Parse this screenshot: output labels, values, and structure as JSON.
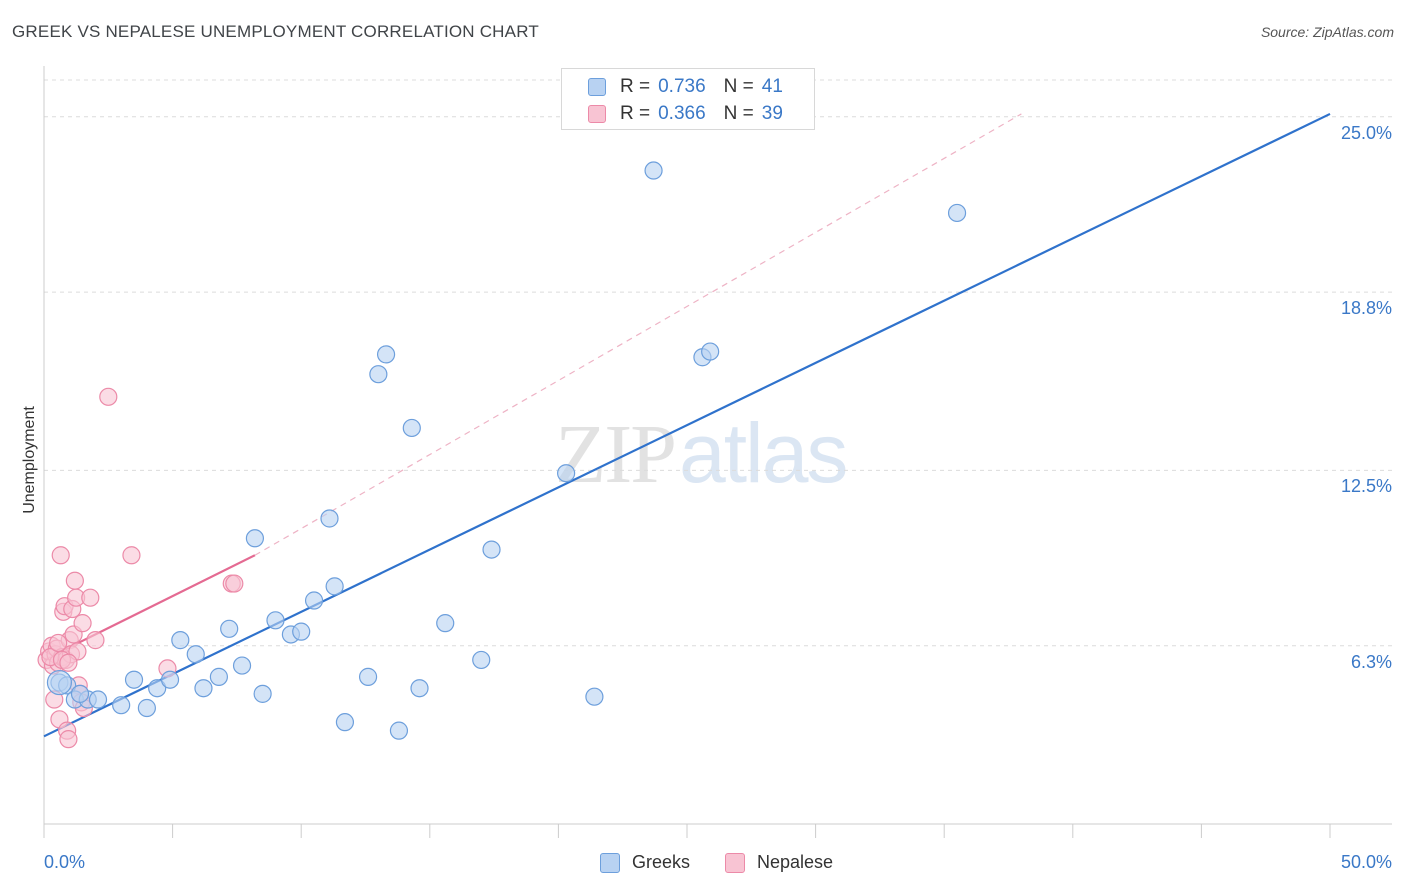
{
  "header": {
    "title": "GREEK VS NEPALESE UNEMPLOYMENT CORRELATION CHART",
    "source": "Source: ZipAtlas.com"
  },
  "watermark": {
    "zip": "ZIP",
    "atlas": "atlas"
  },
  "legend_top": [
    {
      "r_label": "R =",
      "r_value": "0.736",
      "n_label": "N =",
      "n_value": "41"
    },
    {
      "r_label": "R =",
      "r_value": "0.366",
      "n_label": "N =",
      "n_value": "39"
    }
  ],
  "colors": {
    "greeks_fill": "#b8d2f2",
    "greeks_stroke": "#6d9fdc",
    "greeks_line": "#2f72cc",
    "nepalese_fill": "#f8c4d3",
    "nepalese_stroke": "#ec8aa8",
    "nepalese_line": "#e46a92",
    "grid": "#dcdcdc",
    "tick_text": "#3a78c7"
  },
  "chart_data": {
    "type": "scatter",
    "title": "GREEK VS NEPALESE UNEMPLOYMENT CORRELATION CHART",
    "xlabel": "",
    "ylabel": "Unemployment",
    "xlim": [
      0,
      50
    ],
    "ylim": [
      0,
      26.3
    ],
    "x_tick_labels": [
      "0.0%",
      "50.0%"
    ],
    "y_ticks": [
      6.3,
      12.5,
      18.8,
      25.0
    ],
    "y_tick_labels": [
      "6.3%",
      "12.5%",
      "18.8%",
      "25.0%"
    ],
    "grid": true,
    "legend": "bottom-center",
    "series": [
      {
        "name": "Greeks",
        "r": 0.736,
        "n": 41,
        "trend": {
          "x0": 0,
          "y0": 3.1,
          "x1": 50,
          "y1": 25.1,
          "style": "solid"
        },
        "points": [
          [
            0.6,
            5.0
          ],
          [
            0.9,
            4.9
          ],
          [
            1.2,
            4.4
          ],
          [
            1.7,
            4.4
          ],
          [
            2.1,
            4.4
          ],
          [
            3.0,
            4.2
          ],
          [
            3.5,
            5.1
          ],
          [
            4.0,
            4.1
          ],
          [
            4.4,
            4.8
          ],
          [
            4.9,
            5.1
          ],
          [
            5.3,
            6.5
          ],
          [
            5.9,
            6.0
          ],
          [
            6.2,
            4.8
          ],
          [
            6.8,
            5.2
          ],
          [
            7.2,
            6.9
          ],
          [
            7.7,
            5.6
          ],
          [
            8.2,
            10.1
          ],
          [
            8.5,
            4.6
          ],
          [
            9.0,
            7.2
          ],
          [
            9.6,
            6.7
          ],
          [
            10.0,
            6.8
          ],
          [
            10.5,
            7.9
          ],
          [
            11.1,
            10.8
          ],
          [
            11.3,
            8.4
          ],
          [
            11.7,
            3.6
          ],
          [
            12.6,
            5.2
          ],
          [
            13.0,
            15.9
          ],
          [
            13.3,
            16.6
          ],
          [
            13.8,
            3.3
          ],
          [
            14.3,
            14.0
          ],
          [
            14.6,
            4.8
          ],
          [
            15.6,
            7.1
          ],
          [
            17.0,
            5.8
          ],
          [
            17.4,
            9.7
          ],
          [
            20.3,
            12.4
          ],
          [
            21.4,
            4.5
          ],
          [
            23.7,
            23.1
          ],
          [
            25.6,
            16.5
          ],
          [
            25.9,
            16.7
          ],
          [
            35.5,
            21.6
          ],
          [
            1.4,
            4.6
          ]
        ]
      },
      {
        "name": "Nepalese",
        "r": 0.366,
        "n": 39,
        "trend": {
          "x0": 0,
          "y0": 5.8,
          "x1": 8.2,
          "y1": 9.5,
          "style": "solid",
          "extended": {
            "x1": 38.0,
            "y1": 25.1,
            "style": "dashed"
          }
        },
        "points": [
          [
            0.1,
            5.8
          ],
          [
            0.2,
            6.1
          ],
          [
            0.3,
            6.3
          ],
          [
            0.35,
            5.6
          ],
          [
            0.4,
            4.4
          ],
          [
            0.45,
            6.0
          ],
          [
            0.5,
            6.2
          ],
          [
            0.55,
            5.7
          ],
          [
            0.6,
            3.7
          ],
          [
            0.65,
            9.5
          ],
          [
            0.7,
            5.9
          ],
          [
            0.75,
            7.5
          ],
          [
            0.8,
            7.7
          ],
          [
            0.85,
            5.8
          ],
          [
            0.9,
            3.3
          ],
          [
            0.95,
            3.0
          ],
          [
            1.0,
            6.5
          ],
          [
            1.05,
            6.0
          ],
          [
            1.1,
            7.6
          ],
          [
            1.15,
            6.7
          ],
          [
            1.2,
            8.6
          ],
          [
            1.25,
            8.0
          ],
          [
            1.3,
            6.1
          ],
          [
            1.35,
            4.9
          ],
          [
            1.4,
            4.6
          ],
          [
            1.45,
            4.3
          ],
          [
            1.5,
            7.1
          ],
          [
            1.55,
            4.1
          ],
          [
            1.8,
            8.0
          ],
          [
            2.0,
            6.5
          ],
          [
            2.5,
            15.1
          ],
          [
            3.4,
            9.5
          ],
          [
            4.8,
            5.5
          ],
          [
            7.3,
            8.5
          ],
          [
            7.4,
            8.5
          ],
          [
            0.25,
            5.9
          ],
          [
            0.55,
            6.4
          ],
          [
            0.7,
            5.8
          ],
          [
            0.95,
            5.7
          ]
        ]
      }
    ]
  }
}
